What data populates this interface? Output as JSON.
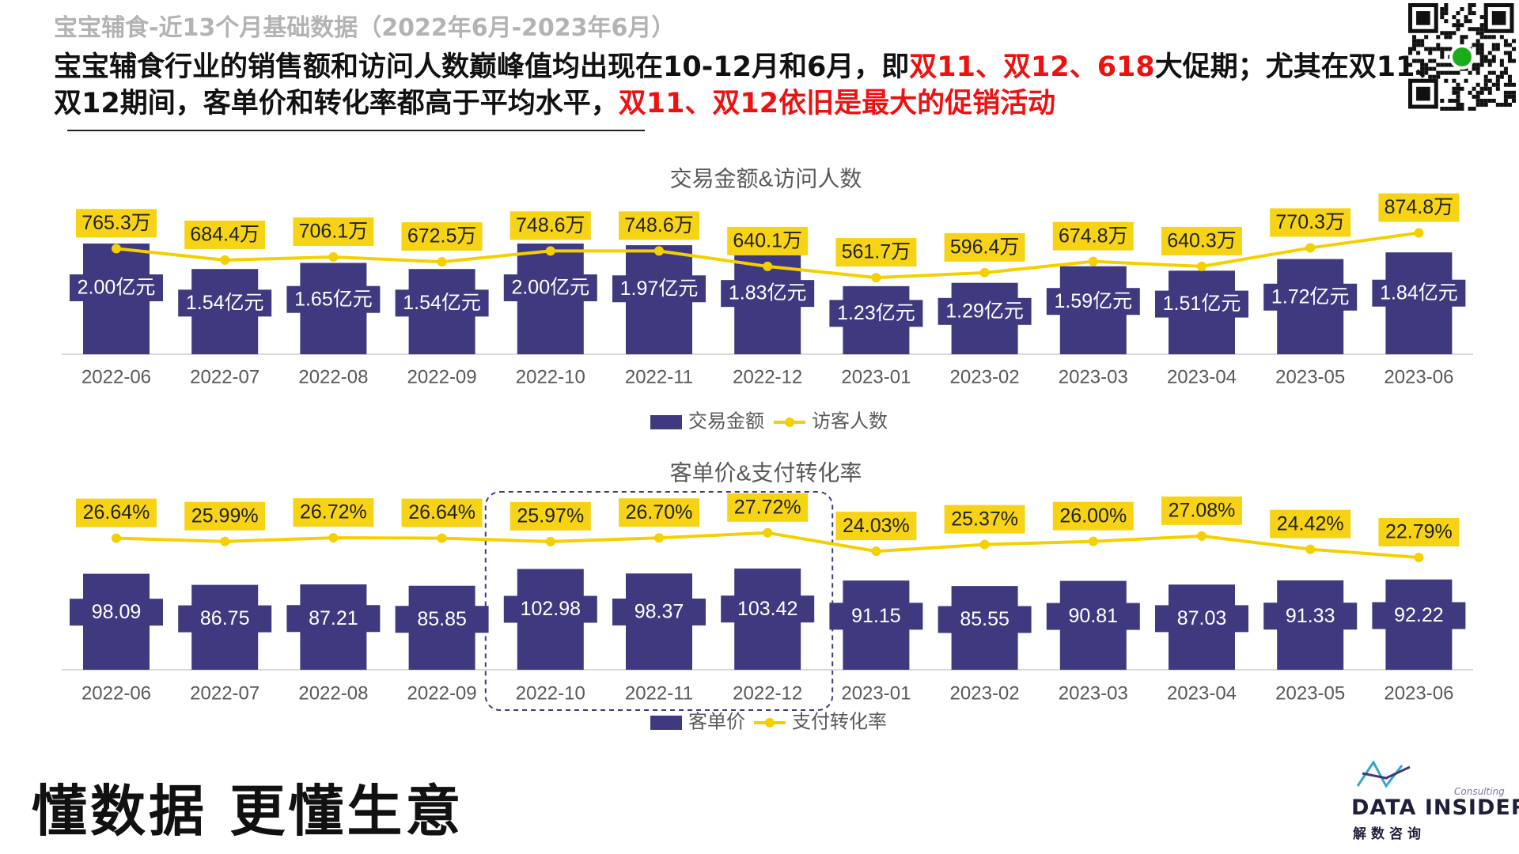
{
  "header": {
    "supertitle": "宝宝辅食-近13个月基础数据（2022年6月-2023年6月）",
    "headline_parts": [
      {
        "text": "宝宝辅食行业的销售额和访问人数巅峰值均出现在10-12月和6月，即",
        "highlight": false
      },
      {
        "text": "双11、双12、618",
        "highlight": true
      },
      {
        "text": "大促期；尤其在双11、",
        "highlight": false
      },
      {
        "text": "\n",
        "highlight": false
      },
      {
        "text": "双12期间，客单价和转化率都高于平均水平，",
        "highlight": false
      },
      {
        "text": "双11、双12依旧是最大的促销活动",
        "highlight": true
      }
    ]
  },
  "qr_icon": "qr-code-with-wechat-icon",
  "slogan": "懂数据 更懂生意",
  "brand": {
    "name": "DATA INSIDER",
    "consulting": "Consulting",
    "cn_name": "解数咨询"
  },
  "colors": {
    "bar": "#3f3a80",
    "line": "#f5d000",
    "label_bg": "#f7d316",
    "highlight_red": "#ee1111",
    "axis_text": "#595959"
  },
  "chart_data": [
    {
      "type": "bar+line",
      "title": "交易金额&访问人数",
      "categories": [
        "2022-06",
        "2022-07",
        "2022-08",
        "2022-09",
        "2022-10",
        "2022-11",
        "2022-12",
        "2023-01",
        "2023-02",
        "2023-03",
        "2023-04",
        "2023-05",
        "2023-06"
      ],
      "series": [
        {
          "name": "交易金额",
          "kind": "bar",
          "unit": "亿元",
          "values": [
            2.0,
            1.54,
            1.65,
            1.54,
            2.0,
            1.97,
            1.83,
            1.23,
            1.29,
            1.59,
            1.51,
            1.72,
            1.84
          ],
          "labels": [
            "2.00亿元",
            "1.54亿元",
            "1.65亿元",
            "1.54亿元",
            "2.00亿元",
            "1.97亿元",
            "1.83亿元",
            "1.23亿元",
            "1.29亿元",
            "1.59亿元",
            "1.51亿元",
            "1.72亿元",
            "1.84亿元"
          ]
        },
        {
          "name": "访客人数",
          "kind": "line",
          "unit": "万",
          "values": [
            765.3,
            684.4,
            706.1,
            672.5,
            748.6,
            748.6,
            640.1,
            561.7,
            596.4,
            674.8,
            640.3,
            770.3,
            874.8
          ],
          "labels": [
            "765.3万",
            "684.4万",
            "706.1万",
            "672.5万",
            "748.6万",
            "748.6万",
            "640.1万",
            "561.7万",
            "596.4万",
            "674.8万",
            "640.3万",
            "770.3万",
            "874.8万"
          ]
        }
      ],
      "legend_position": "bottom-center",
      "grid": false
    },
    {
      "type": "bar+line",
      "title": "客单价&支付转化率",
      "categories": [
        "2022-06",
        "2022-07",
        "2022-08",
        "2022-09",
        "2022-10",
        "2022-11",
        "2022-12",
        "2023-01",
        "2023-02",
        "2023-03",
        "2023-04",
        "2023-05",
        "2023-06"
      ],
      "series": [
        {
          "name": "客单价",
          "kind": "bar",
          "values": [
            98.09,
            86.75,
            87.21,
            85.85,
            102.98,
            98.37,
            103.42,
            91.15,
            85.55,
            90.81,
            87.03,
            91.33,
            92.22
          ],
          "labels": [
            "98.09",
            "86.75",
            "87.21",
            "85.85",
            "102.98",
            "98.37",
            "103.42",
            "91.15",
            "85.55",
            "90.81",
            "87.03",
            "91.33",
            "92.22"
          ]
        },
        {
          "name": "支付转化率",
          "kind": "line",
          "unit": "%",
          "values": [
            26.64,
            25.99,
            26.72,
            26.64,
            25.97,
            26.7,
            27.72,
            24.03,
            25.37,
            26.0,
            27.08,
            24.42,
            22.79
          ],
          "labels": [
            "26.64%",
            "25.99%",
            "26.72%",
            "26.64%",
            "25.97%",
            "26.70%",
            "27.72%",
            "24.03%",
            "25.37%",
            "26.00%",
            "27.08%",
            "24.42%",
            "22.79%"
          ]
        }
      ],
      "highlight_categories": [
        "2022-10",
        "2022-11",
        "2022-12"
      ],
      "legend_position": "bottom-center",
      "grid": false
    }
  ]
}
